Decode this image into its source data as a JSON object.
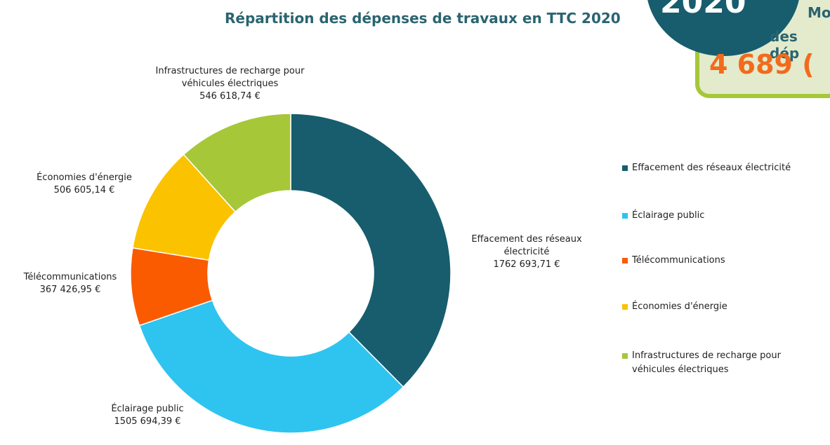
{
  "chart_data": {
    "type": "donut",
    "title": "Répartition des dépenses de travaux en TTC 2020",
    "categories": [
      "Effacement des réseaux électricité",
      "Éclairage public",
      "Télécommunications",
      "Économies d'énergie",
      "Infrastructures de recharge pour véhicules électriques"
    ],
    "values": [
      1762693.71,
      1505694.39,
      367426.95,
      506605.14,
      546618.74
    ],
    "value_labels": [
      "1762 693,71 €",
      "1505 694,39 €",
      "367 426,95 €",
      "506 605,14 €",
      "546 618,74 €"
    ],
    "colors": [
      "#175d6e",
      "#2ec4ef",
      "#fa5a00",
      "#fbc200",
      "#a6c738"
    ],
    "legend": "right"
  },
  "badge": {
    "year": "2020",
    "lines": [
      "Mo",
      "des dép",
      "4 689 ("
    ]
  }
}
